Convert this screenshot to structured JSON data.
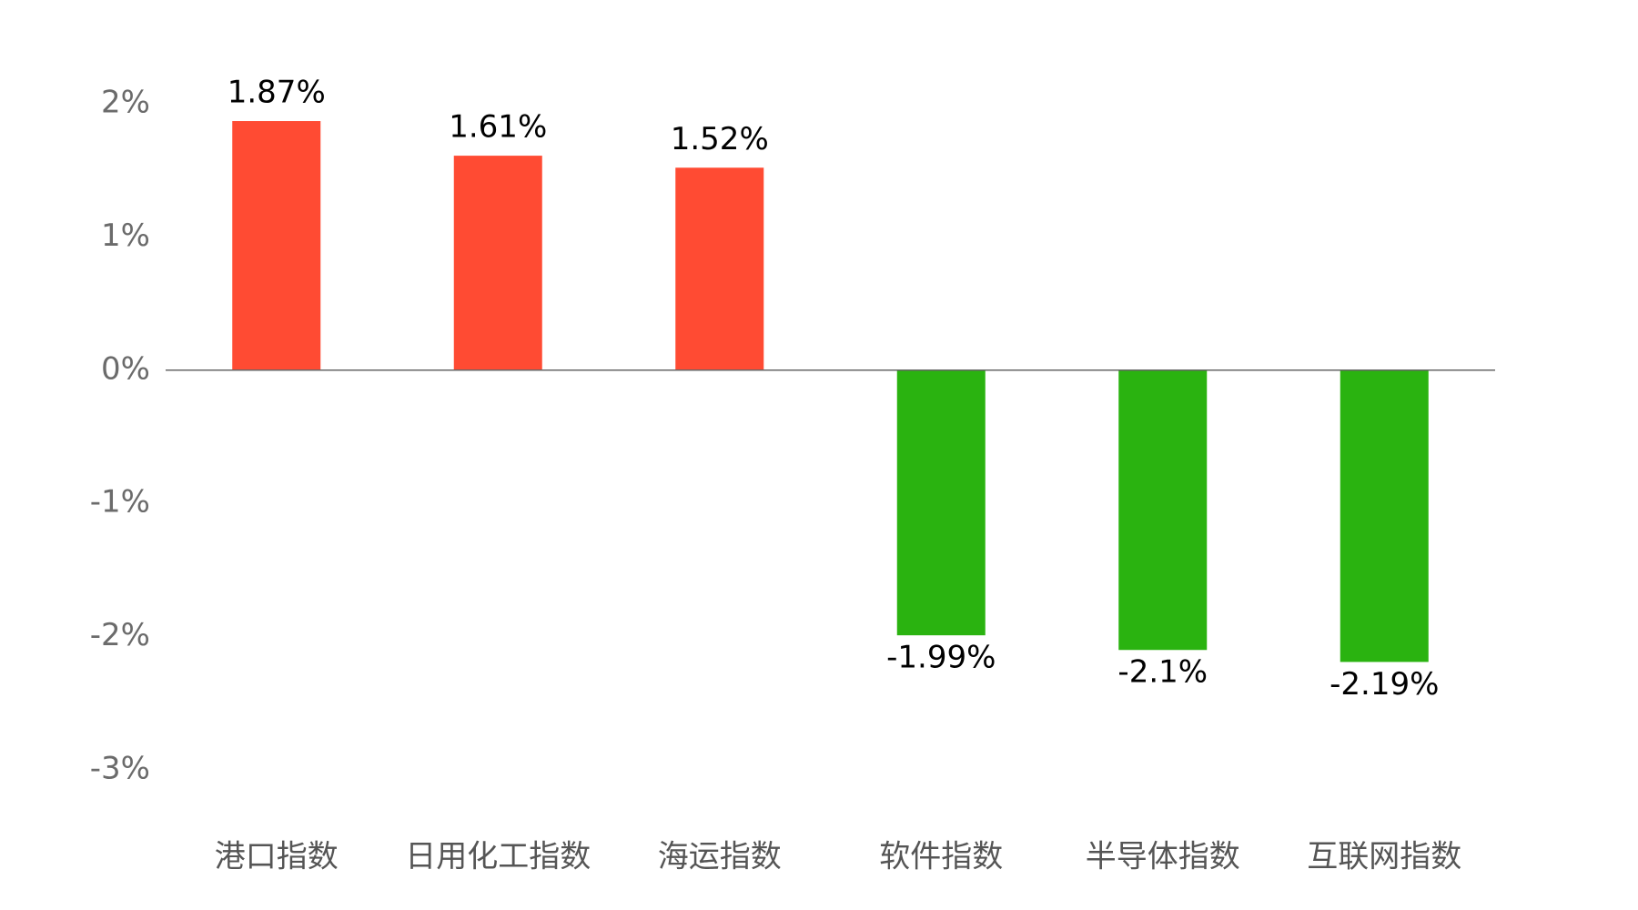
{
  "chart_data": {
    "type": "bar",
    "categories": [
      "港口指数",
      "日用化工指数",
      "海运指数",
      "软件指数",
      "半导体指数",
      "互联网指数"
    ],
    "values": [
      1.87,
      1.61,
      1.52,
      -1.99,
      -2.1,
      -2.19
    ],
    "value_labels": [
      "1.87%",
      "1.61%",
      "1.52%",
      "-1.99%",
      "-2.1%",
      "-2.19%"
    ],
    "positive_color": "#ff4b33",
    "negative_color": "#2ab310",
    "ylim": [
      -3,
      2
    ],
    "yticks": [
      {
        "value": 2,
        "label": "2%"
      },
      {
        "value": 1,
        "label": "1%"
      },
      {
        "value": 0,
        "label": "0%"
      },
      {
        "value": -1,
        "label": "-1%"
      },
      {
        "value": -2,
        "label": "-2%"
      },
      {
        "value": -3,
        "label": "-3%"
      }
    ],
    "grid": false
  }
}
